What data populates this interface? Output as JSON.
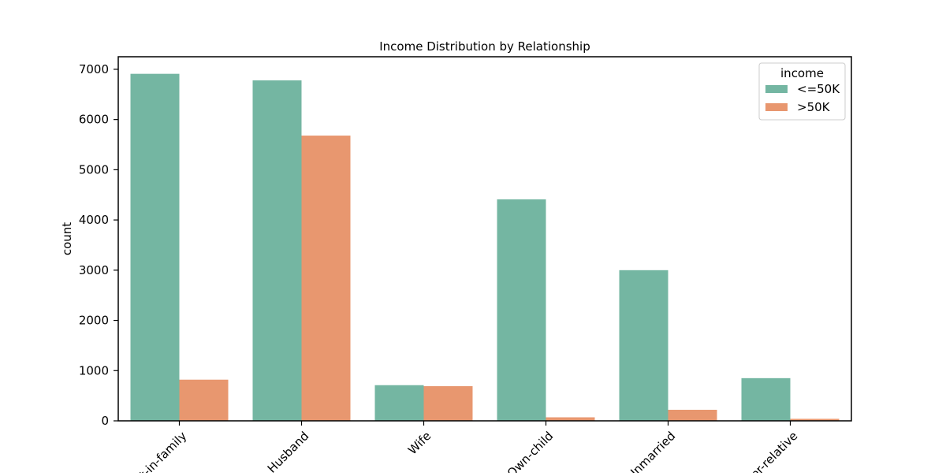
{
  "chart_data": {
    "type": "bar",
    "title": "Income Distribution by Relationship",
    "xlabel": "",
    "ylabel": "count",
    "categories": [
      "Not-in-family",
      "Husband",
      "Wife",
      "Own-child",
      "Unmarried",
      "Other-relative"
    ],
    "ylim": [
      0,
      7250
    ],
    "yticks": [
      0,
      1000,
      2000,
      3000,
      4000,
      5000,
      6000,
      7000
    ],
    "series": [
      {
        "name": "<=50K",
        "color": "#74b6a2",
        "values": [
          6910,
          6780,
          710,
          4410,
          3000,
          850
        ]
      },
      {
        "name": ">50K",
        "color": "#e8976f",
        "values": [
          820,
          5680,
          690,
          70,
          220,
          40
        ]
      }
    ],
    "legend": {
      "title": "income",
      "placement": "top-right"
    },
    "grid": false
  }
}
